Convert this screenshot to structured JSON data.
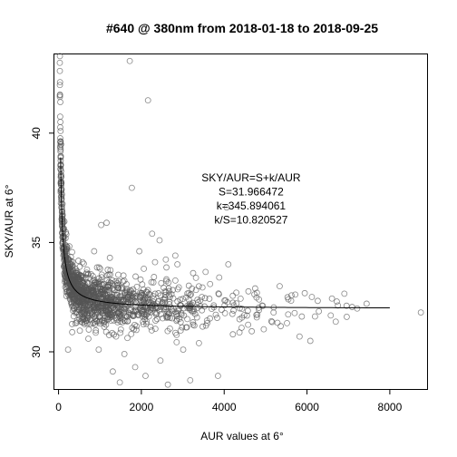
{
  "chart_data": {
    "type": "scatter",
    "title": "#640 @ 380nm from 2018-01-18 to 2018-09-25",
    "xlabel": "AUR values at 6°",
    "ylabel": "SKY/AUR at 6°",
    "xlim": [
      -100,
      8900
    ],
    "ylim": [
      28.3,
      43.6
    ],
    "xticks": [
      0,
      2000,
      4000,
      6000,
      8000
    ],
    "yticks": [
      30,
      35,
      40
    ],
    "grid": false,
    "annotation": {
      "lines": [
        "SKY/AUR=S+k/AUR",
        "S=31.966472",
        "k=345.894061",
        "k/S=10.820527"
      ],
      "anchor_data": [
        4650,
        37.8
      ]
    },
    "fit": {
      "S": 31.966472,
      "k": 345.894061,
      "x_range": [
        50,
        8000
      ]
    },
    "outliers": [
      {
        "x": 1720,
        "y": 43.3
      },
      {
        "x": 2160,
        "y": 41.5
      },
      {
        "x": 1770,
        "y": 37.5
      },
      {
        "x": 4060,
        "y": 36.6
      },
      {
        "x": 2440,
        "y": 35.1
      },
      {
        "x": 2260,
        "y": 35.4
      },
      {
        "x": 1030,
        "y": 35.8
      },
      {
        "x": 1160,
        "y": 35.9
      },
      {
        "x": 3660,
        "y": 33.1
      },
      {
        "x": 3880,
        "y": 33.4
      },
      {
        "x": 4100,
        "y": 34.0
      },
      {
        "x": 3250,
        "y": 33.6
      },
      {
        "x": 5340,
        "y": 33.0
      },
      {
        "x": 2820,
        "y": 34.4
      },
      {
        "x": 1950,
        "y": 34.6
      },
      {
        "x": 610,
        "y": 31.9
      },
      {
        "x": 330,
        "y": 30.9
      },
      {
        "x": 230,
        "y": 30.1
      },
      {
        "x": 970,
        "y": 30.1
      },
      {
        "x": 1590,
        "y": 29.9
      },
      {
        "x": 1850,
        "y": 29.3
      },
      {
        "x": 1480,
        "y": 28.6
      },
      {
        "x": 2100,
        "y": 28.9
      },
      {
        "x": 2640,
        "y": 28.5
      },
      {
        "x": 3180,
        "y": 28.7
      },
      {
        "x": 3850,
        "y": 28.9
      },
      {
        "x": 2460,
        "y": 29.6
      },
      {
        "x": 1310,
        "y": 29.1
      },
      {
        "x": 3390,
        "y": 30.4
      },
      {
        "x": 5820,
        "y": 30.7
      },
      {
        "x": 6080,
        "y": 30.5
      },
      {
        "x": 6960,
        "y": 31.6
      },
      {
        "x": 7440,
        "y": 32.2
      },
      {
        "x": 8750,
        "y": 31.8
      },
      {
        "x": 6720,
        "y": 32.3
      },
      {
        "x": 5140,
        "y": 31.4
      },
      {
        "x": 4420,
        "y": 31.1
      },
      {
        "x": 4790,
        "y": 32.7
      },
      {
        "x": 5550,
        "y": 32.4
      },
      {
        "x": 2870,
        "y": 34.0
      },
      {
        "x": 3010,
        "y": 30.1
      },
      {
        "x": 1390,
        "y": 30.7
      },
      {
        "x": 720,
        "y": 30.6
      },
      {
        "x": 410,
        "y": 31.3
      },
      {
        "x": 2660,
        "y": 32.9
      },
      {
        "x": 4210,
        "y": 30.8
      },
      {
        "x": 3560,
        "y": 31.2
      },
      {
        "x": 1240,
        "y": 34.3
      },
      {
        "x": 860,
        "y": 34.6
      },
      {
        "x": 580,
        "y": 34.1
      },
      {
        "x": 160,
        "y": 34.6
      },
      {
        "x": 2060,
        "y": 33.8
      },
      {
        "x": 2330,
        "y": 34.1
      }
    ],
    "cloud": {
      "count": 1400,
      "x_range": [
        20,
        7500
      ],
      "density_scale": 1300,
      "spread": 0.5,
      "seed": 640
    }
  }
}
